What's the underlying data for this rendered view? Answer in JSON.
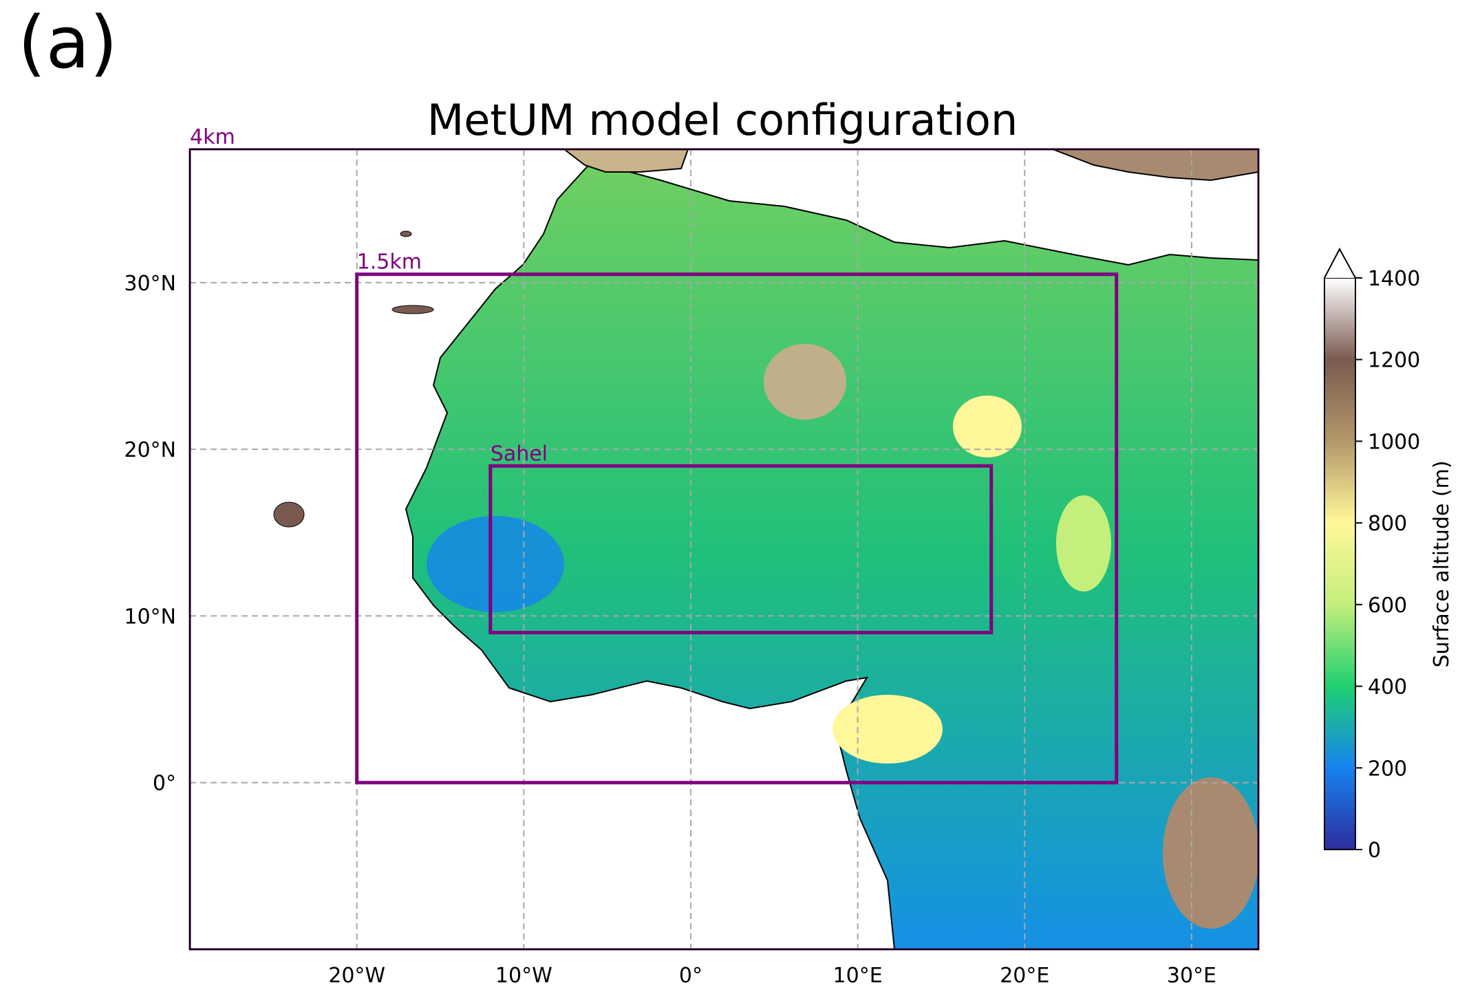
{
  "panel_label": "(a)",
  "title": "MetUM model configuration",
  "map": {
    "lon_range": [
      -30,
      34
    ],
    "lat_range": [
      -10,
      38
    ],
    "lon_ticks": [
      {
        "value": -20,
        "label": "20°W"
      },
      {
        "value": -10,
        "label": "10°W"
      },
      {
        "value": 0,
        "label": "0°"
      },
      {
        "value": 10,
        "label": "10°E"
      },
      {
        "value": 20,
        "label": "20°E"
      },
      {
        "value": 30,
        "label": "30°E"
      }
    ],
    "lat_ticks": [
      {
        "value": 30,
        "label": "30°N"
      },
      {
        "value": 20,
        "label": "20°N"
      },
      {
        "value": 10,
        "label": "10°N"
      },
      {
        "value": 0,
        "label": "0°"
      }
    ],
    "gridlines": "dashed",
    "domain_color": "#800080",
    "domains": [
      {
        "label": "4km",
        "lon": [
          -30,
          34
        ],
        "lat": [
          -10,
          38
        ]
      },
      {
        "label": "1.5km",
        "lon": [
          -20,
          25.5
        ],
        "lat": [
          0,
          30.5
        ]
      },
      {
        "label": "Sahel",
        "lon": [
          -12,
          18
        ],
        "lat": [
          9,
          19
        ]
      }
    ]
  },
  "colorbar": {
    "label": "Surface altitude (m)",
    "min": 0,
    "max": 1400,
    "extend": "max",
    "ticks": [
      0,
      200,
      400,
      600,
      800,
      1000,
      1200,
      1400
    ],
    "colors": [
      "#2e2c9e",
      "#1583f0",
      "#1fd070",
      "#c4ef7c",
      "#fff79a",
      "#b4986a",
      "#7a5a50",
      "#ffffff"
    ]
  }
}
